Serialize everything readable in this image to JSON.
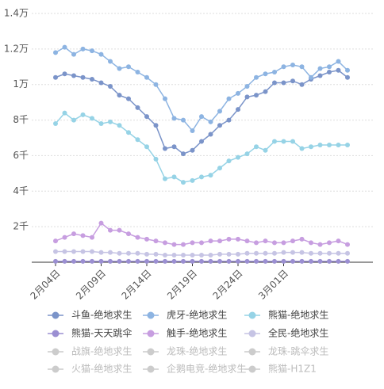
{
  "chart_data": {
    "type": "line",
    "categories": [
      "2月04日",
      null,
      null,
      null,
      null,
      "2月09日",
      null,
      null,
      null,
      null,
      "2月14日",
      null,
      null,
      null,
      null,
      "2月19日",
      null,
      null,
      null,
      null,
      "2月24日",
      null,
      null,
      null,
      null,
      "3月01日",
      null,
      null,
      null,
      null,
      null,
      null,
      null
    ],
    "series": [
      {
        "name": "斗鱼-绝地求生",
        "color": "#7b94c9",
        "values": [
          10400,
          10600,
          10500,
          10400,
          10300,
          10100,
          9900,
          9400,
          9200,
          8700,
          8200,
          7700,
          6400,
          6500,
          6100,
          6300,
          6800,
          7200,
          7700,
          8000,
          8600,
          9300,
          9400,
          9600,
          10100,
          10100,
          10200,
          10000,
          10300,
          10500,
          10700,
          10800,
          10400
        ]
      },
      {
        "name": "虎牙-绝地求生",
        "color": "#8db4e2",
        "values": [
          11800,
          12100,
          11700,
          12000,
          11900,
          11700,
          11300,
          10900,
          11000,
          10700,
          10400,
          10000,
          9200,
          8100,
          8000,
          7400,
          8200,
          7900,
          8500,
          9200,
          9500,
          9900,
          10400,
          10600,
          10700,
          11000,
          11100,
          11000,
          10400,
          10900,
          11000,
          11300,
          10800
        ]
      },
      {
        "name": "熊猫-绝地求生",
        "color": "#96d3e6",
        "values": [
          7800,
          8400,
          8000,
          8300,
          8100,
          7800,
          7900,
          7700,
          7300,
          6900,
          6500,
          5800,
          4700,
          4800,
          4500,
          4600,
          4800,
          4900,
          5300,
          5700,
          5900,
          6100,
          6500,
          6300,
          6800,
          6800,
          6800,
          6400,
          6500,
          6600,
          6600,
          6600,
          6600
        ]
      },
      {
        "name": "熊猫-天天跳伞",
        "color": "#9b8fd2",
        "values": [
          50,
          50,
          50,
          50,
          50,
          50,
          50,
          50,
          50,
          50,
          50,
          50,
          50,
          50,
          50,
          50,
          50,
          50,
          50,
          50,
          50,
          50,
          50,
          50,
          50,
          50,
          50,
          50,
          50,
          50,
          50,
          50,
          50
        ]
      },
      {
        "name": "触手-绝地求生",
        "color": "#c79ee0",
        "values": [
          1200,
          1400,
          1600,
          1500,
          1400,
          2200,
          1800,
          1800,
          1600,
          1400,
          1300,
          1200,
          1100,
          1000,
          1000,
          1100,
          1100,
          1200,
          1200,
          1300,
          1300,
          1200,
          1100,
          1200,
          1100,
          1100,
          1200,
          1300,
          1100,
          1000,
          1100,
          1200,
          1000
        ]
      },
      {
        "name": "全民-绝地求生",
        "color": "#c6c4e4",
        "values": [
          600,
          600,
          600,
          600,
          600,
          550,
          550,
          500,
          500,
          500,
          450,
          450,
          400,
          400,
          400,
          400,
          400,
          400,
          450,
          450,
          450,
          500,
          500,
          500,
          500,
          550,
          550,
          550,
          500,
          500,
          500,
          500,
          500
        ]
      }
    ],
    "inactive_series": [
      "战旗-绝地求生",
      "龙珠-绝地求生",
      "龙珠-跳伞求生",
      "火猫-绝地求生",
      "企鹅电竞-绝地求生",
      "熊猫-H1Z1"
    ],
    "inactive_color": "#cccccc",
    "ylim": [
      0,
      14000
    ],
    "yticks": [
      {
        "value": 2000,
        "label": "2千"
      },
      {
        "value": 4000,
        "label": "4千"
      },
      {
        "value": 6000,
        "label": "6千"
      },
      {
        "value": 8000,
        "label": "8千"
      },
      {
        "value": 10000,
        "label": "1万"
      },
      {
        "value": 12000,
        "label": "1.2万"
      },
      {
        "value": 14000,
        "label": "1.4万"
      }
    ],
    "grid": true
  }
}
